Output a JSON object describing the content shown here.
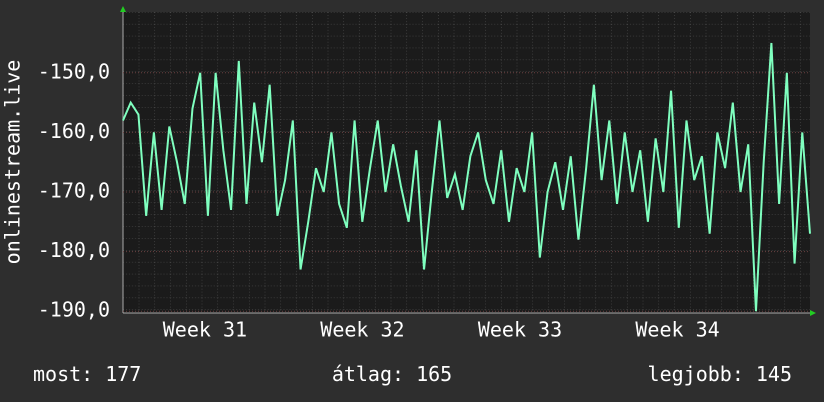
{
  "chart_data": {
    "type": "line",
    "y_label": "onlinestream.live",
    "xlim": [
      30.48,
      34.841
    ],
    "xticks": [
      {
        "value": 31,
        "label": "Week 31"
      },
      {
        "value": 32,
        "label": "Week 32"
      },
      {
        "value": 33,
        "label": "Week 33"
      },
      {
        "value": 34,
        "label": "Week 34"
      }
    ],
    "ylim": [
      -190.3,
      -139.8
    ],
    "yticks": [
      {
        "value": -190,
        "label": "-190,0"
      },
      {
        "value": -180,
        "label": "-180,0"
      },
      {
        "value": -170,
        "label": "-170,0"
      },
      {
        "value": -160,
        "label": "-160,0"
      },
      {
        "value": -150,
        "label": "-150,0"
      }
    ],
    "grid": true,
    "x": [
      30.48,
      30.529,
      30.578,
      30.627,
      30.676,
      30.725,
      30.774,
      30.823,
      30.872,
      30.921,
      30.97,
      31.019,
      31.068,
      31.117,
      31.166,
      31.215,
      31.264,
      31.313,
      31.362,
      31.411,
      31.46,
      31.509,
      31.558,
      31.607,
      31.656,
      31.705,
      31.754,
      31.803,
      31.852,
      31.901,
      31.95,
      31.999,
      32.048,
      32.097,
      32.146,
      32.195,
      32.244,
      32.293,
      32.342,
      32.391,
      32.44,
      32.489,
      32.538,
      32.587,
      32.636,
      32.685,
      32.734,
      32.783,
      32.832,
      32.881,
      32.93,
      32.979,
      33.028,
      33.077,
      33.126,
      33.175,
      33.224,
      33.273,
      33.322,
      33.371,
      33.42,
      33.469,
      33.518,
      33.567,
      33.616,
      33.665,
      33.714,
      33.763,
      33.812,
      33.861,
      33.91,
      33.959,
      34.008,
      34.057,
      34.106,
      34.155,
      34.204,
      34.253,
      34.302,
      34.351,
      34.4,
      34.449,
      34.498,
      34.547,
      34.596,
      34.645,
      34.694,
      34.743,
      34.792,
      34.841
    ],
    "series": [
      {
        "color": "#7fffbf",
        "values": [
          -158,
          -155,
          -157,
          -174,
          -160,
          -173,
          -159,
          -165,
          -172,
          -156,
          -150,
          -174,
          -150,
          -163,
          -173,
          -148,
          -172,
          -155,
          -165,
          -152,
          -174,
          -168,
          -158,
          -183,
          -175,
          -166,
          -170,
          -160,
          -172,
          -176,
          -158,
          -175,
          -166,
          -158,
          -170,
          -162,
          -169,
          -175,
          -163,
          -183,
          -170,
          -158,
          -171,
          -167,
          -173,
          -164,
          -160,
          -168,
          -172,
          -163,
          -175,
          -166,
          -170,
          -160,
          -181,
          -170,
          -165,
          -173,
          -164,
          -178,
          -166,
          -152,
          -168,
          -158,
          -172,
          -160,
          -170,
          -163,
          -175,
          -161,
          -170,
          -153,
          -176,
          -158,
          -168,
          -164,
          -177,
          -160,
          -166,
          -155,
          -170,
          -162,
          -190,
          -165,
          -145,
          -172,
          -150,
          -182,
          -160,
          -177
        ]
      }
    ],
    "stats": [
      {
        "label": "most:",
        "value": 177
      },
      {
        "label": "átlag:",
        "value": 165
      },
      {
        "label": "legjobb:",
        "value": 145
      }
    ]
  }
}
